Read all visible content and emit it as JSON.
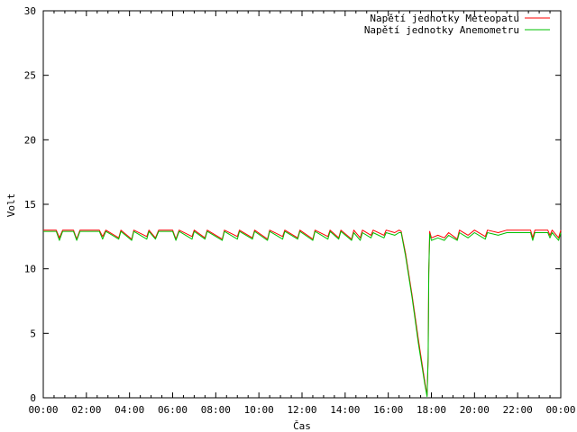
{
  "chart_data": {
    "type": "line",
    "xlabel": "Čas",
    "ylabel": "Volt",
    "xlim": [
      0,
      24
    ],
    "ylim": [
      0,
      30
    ],
    "x_ticks": [
      0,
      2,
      4,
      6,
      8,
      10,
      12,
      14,
      16,
      18,
      20,
      22,
      24
    ],
    "x_tick_labels": [
      "00:00",
      "02:00",
      "04:00",
      "06:00",
      "08:00",
      "10:00",
      "12:00",
      "14:00",
      "16:00",
      "18:00",
      "20:00",
      "22:00",
      "00:00"
    ],
    "y_ticks": [
      0,
      5,
      10,
      15,
      20,
      25,
      30
    ],
    "y_tick_labels": [
      "0",
      "5",
      "10",
      "15",
      "20",
      "25",
      "30"
    ],
    "grid": false,
    "legend_position": "top-right",
    "series": [
      {
        "name": "Napětí jednotky Meteopatu",
        "color": "#ff0000",
        "points": [
          [
            0,
            13.0
          ],
          [
            0.6,
            13.0
          ],
          [
            0.75,
            12.4
          ],
          [
            0.9,
            13.0
          ],
          [
            1.4,
            13.0
          ],
          [
            1.55,
            12.3
          ],
          [
            1.7,
            13.0
          ],
          [
            2.6,
            13.0
          ],
          [
            2.75,
            12.5
          ],
          [
            2.9,
            13.0
          ],
          [
            3.5,
            12.4
          ],
          [
            3.6,
            13.0
          ],
          [
            4.1,
            12.3
          ],
          [
            4.2,
            13.0
          ],
          [
            4.8,
            12.5
          ],
          [
            4.9,
            13.0
          ],
          [
            5.2,
            12.4
          ],
          [
            5.35,
            13.0
          ],
          [
            6.0,
            13.0
          ],
          [
            6.15,
            12.3
          ],
          [
            6.3,
            13.0
          ],
          [
            6.9,
            12.5
          ],
          [
            7.0,
            13.0
          ],
          [
            7.5,
            12.4
          ],
          [
            7.6,
            13.0
          ],
          [
            8.3,
            12.3
          ],
          [
            8.4,
            13.0
          ],
          [
            9.0,
            12.5
          ],
          [
            9.1,
            13.0
          ],
          [
            9.7,
            12.4
          ],
          [
            9.8,
            13.0
          ],
          [
            10.4,
            12.3
          ],
          [
            10.5,
            13.0
          ],
          [
            11.1,
            12.5
          ],
          [
            11.2,
            13.0
          ],
          [
            11.8,
            12.4
          ],
          [
            11.9,
            13.0
          ],
          [
            12.5,
            12.3
          ],
          [
            12.6,
            13.0
          ],
          [
            13.2,
            12.5
          ],
          [
            13.3,
            13.0
          ],
          [
            13.7,
            12.4
          ],
          [
            13.8,
            13.0
          ],
          [
            14.3,
            12.3
          ],
          [
            14.4,
            13.0
          ],
          [
            14.7,
            12.4
          ],
          [
            14.8,
            13.0
          ],
          [
            15.2,
            12.6
          ],
          [
            15.3,
            13.0
          ],
          [
            15.8,
            12.6
          ],
          [
            15.9,
            13.0
          ],
          [
            16.3,
            12.8
          ],
          [
            16.5,
            13.0
          ],
          [
            16.6,
            12.9
          ],
          [
            16.8,
            11.2
          ],
          [
            17.1,
            8.0
          ],
          [
            17.4,
            4.5
          ],
          [
            17.7,
            1.2
          ],
          [
            17.8,
            0.2
          ],
          [
            17.85,
            3.2
          ],
          [
            17.88,
            9.8
          ],
          [
            17.92,
            12.9
          ],
          [
            18.0,
            12.4
          ],
          [
            18.3,
            12.6
          ],
          [
            18.6,
            12.4
          ],
          [
            18.8,
            12.8
          ],
          [
            19.2,
            12.3
          ],
          [
            19.3,
            13.0
          ],
          [
            19.7,
            12.6
          ],
          [
            20.0,
            13.0
          ],
          [
            20.5,
            12.5
          ],
          [
            20.6,
            13.0
          ],
          [
            21.1,
            12.8
          ],
          [
            21.5,
            13.0
          ],
          [
            22.0,
            13.0
          ],
          [
            22.6,
            13.0
          ],
          [
            22.7,
            12.4
          ],
          [
            22.8,
            13.0
          ],
          [
            23.4,
            13.0
          ],
          [
            23.5,
            12.6
          ],
          [
            23.6,
            13.0
          ],
          [
            23.9,
            12.4
          ],
          [
            24.0,
            13.0
          ]
        ]
      },
      {
        "name": "Napětí jednotky Anemometru",
        "color": "#00c000",
        "points": [
          [
            0,
            12.9
          ],
          [
            0.6,
            12.9
          ],
          [
            0.75,
            12.2
          ],
          [
            0.9,
            12.9
          ],
          [
            1.4,
            12.9
          ],
          [
            1.55,
            12.2
          ],
          [
            1.7,
            12.9
          ],
          [
            2.6,
            12.9
          ],
          [
            2.75,
            12.3
          ],
          [
            2.9,
            12.9
          ],
          [
            3.5,
            12.3
          ],
          [
            3.6,
            12.9
          ],
          [
            4.1,
            12.2
          ],
          [
            4.2,
            12.9
          ],
          [
            4.8,
            12.3
          ],
          [
            4.9,
            12.9
          ],
          [
            5.2,
            12.3
          ],
          [
            5.35,
            12.9
          ],
          [
            6.0,
            12.9
          ],
          [
            6.15,
            12.2
          ],
          [
            6.3,
            12.9
          ],
          [
            6.9,
            12.3
          ],
          [
            7.0,
            12.9
          ],
          [
            7.5,
            12.3
          ],
          [
            7.6,
            12.9
          ],
          [
            8.3,
            12.2
          ],
          [
            8.4,
            12.9
          ],
          [
            9.0,
            12.3
          ],
          [
            9.1,
            12.9
          ],
          [
            9.7,
            12.3
          ],
          [
            9.8,
            12.9
          ],
          [
            10.4,
            12.2
          ],
          [
            10.5,
            12.9
          ],
          [
            11.1,
            12.3
          ],
          [
            11.2,
            12.9
          ],
          [
            11.8,
            12.3
          ],
          [
            11.9,
            12.9
          ],
          [
            12.5,
            12.2
          ],
          [
            12.6,
            12.9
          ],
          [
            13.2,
            12.3
          ],
          [
            13.3,
            12.9
          ],
          [
            13.7,
            12.3
          ],
          [
            13.8,
            12.9
          ],
          [
            14.3,
            12.2
          ],
          [
            14.4,
            12.8
          ],
          [
            14.7,
            12.2
          ],
          [
            14.8,
            12.8
          ],
          [
            15.2,
            12.4
          ],
          [
            15.3,
            12.8
          ],
          [
            15.8,
            12.4
          ],
          [
            15.9,
            12.8
          ],
          [
            16.3,
            12.6
          ],
          [
            16.5,
            12.8
          ],
          [
            16.6,
            12.8
          ],
          [
            16.8,
            11.0
          ],
          [
            17.1,
            7.8
          ],
          [
            17.4,
            4.2
          ],
          [
            17.7,
            1.0
          ],
          [
            17.8,
            0.1
          ],
          [
            17.85,
            3.0
          ],
          [
            17.88,
            9.6
          ],
          [
            17.92,
            12.7
          ],
          [
            18.0,
            12.2
          ],
          [
            18.3,
            12.4
          ],
          [
            18.6,
            12.2
          ],
          [
            18.8,
            12.6
          ],
          [
            19.2,
            12.2
          ],
          [
            19.3,
            12.8
          ],
          [
            19.7,
            12.4
          ],
          [
            20.0,
            12.8
          ],
          [
            20.5,
            12.3
          ],
          [
            20.6,
            12.8
          ],
          [
            21.1,
            12.6
          ],
          [
            21.5,
            12.8
          ],
          [
            22.0,
            12.8
          ],
          [
            22.6,
            12.8
          ],
          [
            22.7,
            12.2
          ],
          [
            22.8,
            12.8
          ],
          [
            23.4,
            12.8
          ],
          [
            23.5,
            12.4
          ],
          [
            23.6,
            12.8
          ],
          [
            23.9,
            12.2
          ],
          [
            24.0,
            12.8
          ]
        ]
      }
    ]
  }
}
